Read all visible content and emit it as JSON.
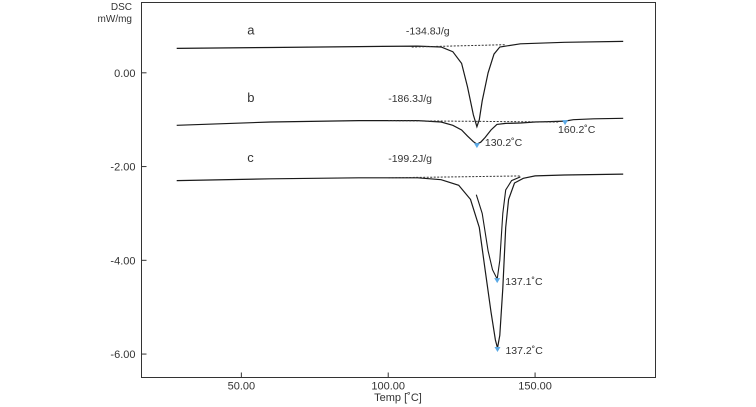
{
  "chart_data": {
    "type": "line",
    "ylabel": [
      "DSC",
      "mW/mg"
    ],
    "xlabel": "Temp [˚C]",
    "xlim": [
      16,
      191
    ],
    "ylim": [
      -6.5,
      1.5
    ],
    "xticks": [
      {
        "value": 50,
        "label": "50.00"
      },
      {
        "value": 100,
        "label": "100.00"
      },
      {
        "value": 150,
        "label": "150.00"
      }
    ],
    "yticks": [
      {
        "value": 0,
        "label": "0.00"
      },
      {
        "value": -2,
        "label": "-2.00"
      },
      {
        "value": -4,
        "label": "-4.00"
      },
      {
        "value": -6,
        "label": "-6.00"
      }
    ],
    "grid": false,
    "series": [
      {
        "label": "a",
        "enthalpy": "-134.8J/g",
        "points": [
          [
            28,
            0.52
          ],
          [
            60,
            0.54
          ],
          [
            90,
            0.56
          ],
          [
            110,
            0.57
          ],
          [
            118,
            0.55
          ],
          [
            122,
            0.45
          ],
          [
            125,
            0.2
          ],
          [
            127,
            -0.3
          ],
          [
            129,
            -0.9
          ],
          [
            130.2,
            -1.15
          ],
          [
            131,
            -1.0
          ],
          [
            132,
            -0.6
          ],
          [
            134,
            0.0
          ],
          [
            136,
            0.4
          ],
          [
            138,
            0.55
          ],
          [
            145,
            0.62
          ],
          [
            160,
            0.65
          ],
          [
            180,
            0.67
          ]
        ],
        "baseline": [
          [
            108,
            0.55
          ],
          [
            140,
            0.6
          ]
        ],
        "label_pos": [
          52,
          0.82
        ],
        "enthalpy_pos": [
          106,
          0.82
        ]
      },
      {
        "label": "b",
        "enthalpy": "-186.3J/g",
        "peaks": [
          {
            "x": 130.2,
            "y": -1.52,
            "label": "130.2˚C"
          },
          {
            "x": 160.2,
            "y": -1.03,
            "label": "160.2˚C"
          }
        ],
        "points": [
          [
            28,
            -1.12
          ],
          [
            60,
            -1.05
          ],
          [
            90,
            -1.02
          ],
          [
            110,
            -1.02
          ],
          [
            118,
            -1.05
          ],
          [
            122,
            -1.12
          ],
          [
            125,
            -1.22
          ],
          [
            127,
            -1.35
          ],
          [
            129,
            -1.47
          ],
          [
            130.2,
            -1.52
          ],
          [
            131.5,
            -1.48
          ],
          [
            133,
            -1.38
          ],
          [
            135,
            -1.22
          ],
          [
            137,
            -1.1
          ],
          [
            140,
            -1.08
          ],
          [
            145,
            -1.07
          ],
          [
            150,
            -1.05
          ],
          [
            155,
            -1.04
          ],
          [
            160.2,
            -1.03
          ],
          [
            163,
            -1.0
          ],
          [
            170,
            -0.98
          ],
          [
            180,
            -0.97
          ]
        ],
        "baseline": [
          [
            100,
            -1.02
          ],
          [
            158,
            -1.05
          ]
        ],
        "label_pos": [
          52,
          -0.62
        ],
        "enthalpy_pos": [
          100,
          -0.62
        ]
      },
      {
        "label": "c",
        "enthalpy": "-199.2J/g",
        "peaks": [
          {
            "x": 137.1,
            "y": -4.4,
            "label": "137.1˚C"
          },
          {
            "x": 137.2,
            "y": -5.87,
            "label": "137.2˚C"
          }
        ],
        "points": [
          [
            28,
            -2.3
          ],
          [
            60,
            -2.26
          ],
          [
            90,
            -2.24
          ],
          [
            110,
            -2.24
          ],
          [
            118,
            -2.28
          ],
          [
            124,
            -2.4
          ],
          [
            128,
            -2.7
          ],
          [
            131,
            -3.3
          ],
          [
            133,
            -4.2
          ],
          [
            135,
            -5.1
          ],
          [
            136.5,
            -5.7
          ],
          [
            137.2,
            -5.87
          ],
          [
            138,
            -5.6
          ],
          [
            139,
            -4.6
          ],
          [
            140,
            -3.3
          ],
          [
            141,
            -2.7
          ],
          [
            143,
            -2.35
          ],
          [
            146,
            -2.25
          ],
          [
            150,
            -2.2
          ],
          [
            160,
            -2.18
          ],
          [
            180,
            -2.16
          ]
        ],
        "inner_points": [
          [
            130,
            -2.6
          ],
          [
            132,
            -3.0
          ],
          [
            134,
            -3.8
          ],
          [
            135.5,
            -4.2
          ],
          [
            137.1,
            -4.4
          ],
          [
            138,
            -4.0
          ],
          [
            139,
            -3.0
          ],
          [
            140,
            -2.5
          ],
          [
            142,
            -2.3
          ],
          [
            145,
            -2.22
          ]
        ],
        "baseline": [
          [
            100,
            -2.24
          ],
          [
            145,
            -2.2
          ]
        ],
        "label_pos": [
          52,
          -1.9
        ],
        "enthalpy_pos": [
          100,
          -1.9
        ]
      }
    ]
  }
}
